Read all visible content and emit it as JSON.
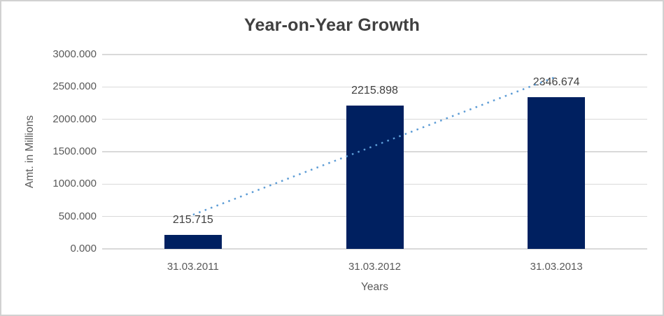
{
  "chart_data": {
    "type": "bar",
    "title": "Year-on-Year Growth",
    "xlabel": "Years",
    "ylabel": "Amt. in Millions",
    "categories": [
      "31.03.2011",
      "31.03.2012",
      "31.03.2013"
    ],
    "values": [
      215.715,
      2215.898,
      2346.674
    ],
    "value_labels": [
      "215.715",
      "2215.898",
      "2346.674"
    ],
    "y_ticks": [
      "0.000",
      "500.000",
      "1000.000",
      "1500.000",
      "2000.000",
      "2500.000",
      "3000.000"
    ],
    "ylim": [
      0,
      3000
    ],
    "grid": "horizontal",
    "legend": "none",
    "trendline": "linear-dotted",
    "colors": {
      "bar": "#002060",
      "trendline": "#5B9BD5",
      "gridline": "#D9D9D9",
      "title_text": "#404040",
      "axis_text": "#595959",
      "data_label_text": "#404040",
      "frame_border": "#D1D1D1",
      "background": "#FFFFFF"
    }
  }
}
